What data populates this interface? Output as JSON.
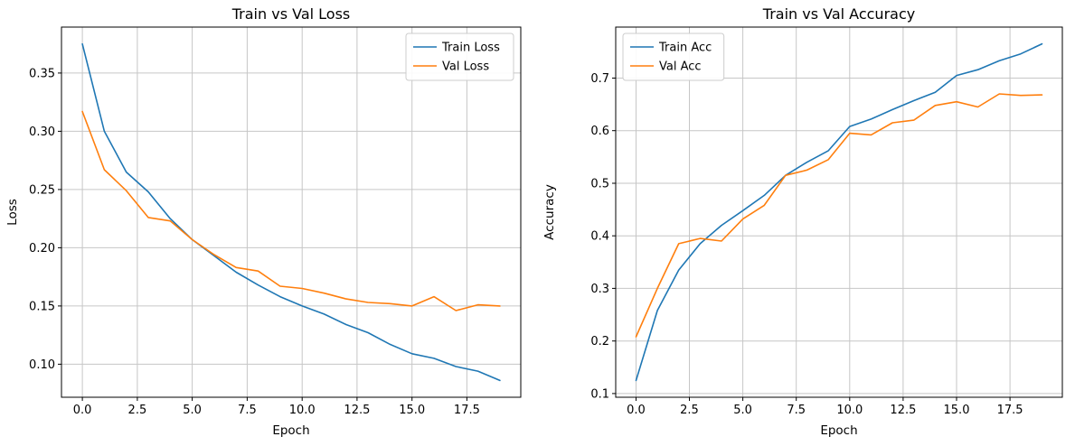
{
  "figure": {
    "background": "#ffffff",
    "grid_color": "#c6c6c6",
    "axes_edge_color": "#000000",
    "text_color": "#000000"
  },
  "chart_data": [
    {
      "type": "line",
      "title": "Train vs Val Loss",
      "xlabel": "Epoch",
      "ylabel": "Loss",
      "grid": true,
      "legend_position": "upper right",
      "xlim": [
        -0.95,
        19.95
      ],
      "ylim": [
        0.0716,
        0.3895
      ],
      "x_ticks": [
        0,
        2.5,
        5,
        7.5,
        10,
        12.5,
        15,
        17.5
      ],
      "x_tick_labels": [
        "0.0",
        "2.5",
        "5.0",
        "7.5",
        "10.0",
        "12.5",
        "15.0",
        "17.5"
      ],
      "y_ticks": [
        0.1,
        0.15,
        0.2,
        0.25,
        0.3,
        0.35
      ],
      "y_tick_labels": [
        "0.10",
        "0.15",
        "0.20",
        "0.25",
        "0.30",
        "0.35"
      ],
      "x": [
        0,
        1,
        2,
        3,
        4,
        5,
        6,
        7,
        8,
        9,
        10,
        11,
        12,
        13,
        14,
        15,
        16,
        17,
        18,
        19
      ],
      "series": [
        {
          "name": "Train Loss",
          "color": "#1f77b4",
          "values": [
            0.375,
            0.3,
            0.265,
            0.248,
            0.225,
            0.207,
            0.193,
            0.179,
            0.168,
            0.158,
            0.15,
            0.143,
            0.134,
            0.127,
            0.117,
            0.109,
            0.105,
            0.098,
            0.094,
            0.086
          ]
        },
        {
          "name": "Val Loss",
          "color": "#ff7f0e",
          "values": [
            0.317,
            0.267,
            0.249,
            0.226,
            0.223,
            0.207,
            0.194,
            0.183,
            0.18,
            0.167,
            0.165,
            0.161,
            0.156,
            0.153,
            0.152,
            0.15,
            0.158,
            0.146,
            0.151,
            0.15
          ]
        }
      ]
    },
    {
      "type": "line",
      "title": "Train vs Val Accuracy",
      "xlabel": "Epoch",
      "ylabel": "Accuracy",
      "grid": true,
      "legend_position": "upper left",
      "xlim": [
        -0.95,
        19.95
      ],
      "ylim": [
        0.093,
        0.797
      ],
      "x_ticks": [
        0,
        2.5,
        5,
        7.5,
        10,
        12.5,
        15,
        17.5
      ],
      "x_tick_labels": [
        "0.0",
        "2.5",
        "5.0",
        "7.5",
        "10.0",
        "12.5",
        "15.0",
        "17.5"
      ],
      "y_ticks": [
        0.1,
        0.2,
        0.3,
        0.4,
        0.5,
        0.6,
        0.7
      ],
      "y_tick_labels": [
        "0.1",
        "0.2",
        "0.3",
        "0.4",
        "0.5",
        "0.6",
        "0.7"
      ],
      "x": [
        0,
        1,
        2,
        3,
        4,
        5,
        6,
        7,
        8,
        9,
        10,
        11,
        12,
        13,
        14,
        15,
        16,
        17,
        18,
        19
      ],
      "series": [
        {
          "name": "Train Acc",
          "color": "#1f77b4",
          "values": [
            0.125,
            0.258,
            0.335,
            0.385,
            0.42,
            0.448,
            0.477,
            0.515,
            0.54,
            0.562,
            0.608,
            0.622,
            0.64,
            0.657,
            0.673,
            0.705,
            0.716,
            0.733,
            0.746,
            0.765
          ]
        },
        {
          "name": "Val Acc",
          "color": "#ff7f0e",
          "values": [
            0.208,
            0.3,
            0.385,
            0.395,
            0.39,
            0.432,
            0.458,
            0.515,
            0.525,
            0.545,
            0.595,
            0.592,
            0.615,
            0.62,
            0.648,
            0.655,
            0.645,
            0.67,
            0.667,
            0.668
          ]
        }
      ]
    }
  ]
}
